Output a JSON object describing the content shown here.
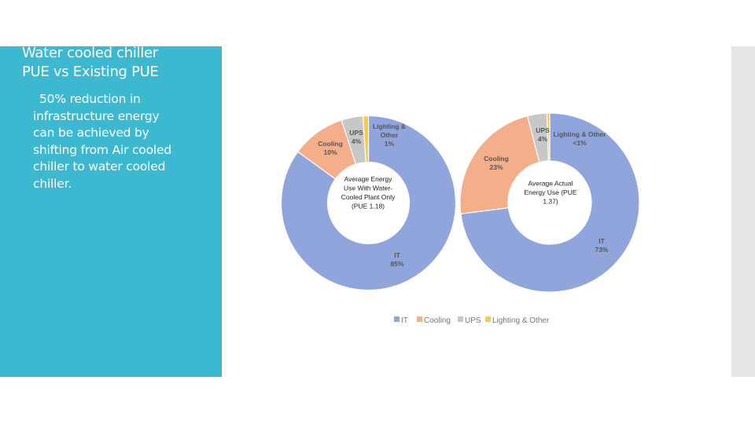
{
  "slide": {
    "title_lines": [
      "Water cooled chiller",
      "PUE vs  Existing PUE"
    ],
    "bullet_lines": [
      "50% reduction in",
      "infrastructure energy",
      "can be achieved by",
      "shifting from Air cooled",
      "chiller to water cooled",
      "chiller."
    ]
  },
  "chart_data": [
    {
      "type": "pie",
      "center_label_lines": [
        "Average Energy",
        "Use With Water-",
        "Cooled Plant Only",
        "(PUE 1.18)"
      ],
      "slices": [
        {
          "name": "IT",
          "value": 85,
          "label_lines": [
            "IT",
            "85%"
          ]
        },
        {
          "name": "Cooling",
          "value": 10,
          "label_lines": [
            "Cooling",
            "10%"
          ]
        },
        {
          "name": "UPS",
          "value": 4,
          "label_lines": [
            "UPS",
            "4%"
          ]
        },
        {
          "name": "Lighting & Other",
          "value": 1,
          "label_lines": [
            "Lighting &",
            "Other",
            "1%"
          ]
        }
      ],
      "colors": [
        "#8fa5dc",
        "#f4ae8a",
        "#c7c7c7",
        "#fcc943"
      ]
    },
    {
      "type": "pie",
      "center_label_lines": [
        "Average Actual",
        "Energy Use (PUE",
        "1.37)"
      ],
      "slices": [
        {
          "name": "IT",
          "value": 73,
          "label_lines": [
            "IT",
            "73%"
          ]
        },
        {
          "name": "Cooling",
          "value": 23,
          "label_lines": [
            "Cooling",
            "23%"
          ]
        },
        {
          "name": "UPS",
          "value": 3.5,
          "label_lines": [
            "UPS",
            "4%"
          ]
        },
        {
          "name": "Lighting & Other",
          "value": 0.5,
          "label_lines": [
            "Lighting & Other",
            "<1%"
          ]
        }
      ],
      "colors": [
        "#8fa5dc",
        "#f4ae8a",
        "#c7c7c7",
        "#fcc943"
      ]
    }
  ],
  "legend": [
    {
      "label": "IT",
      "color": "#8fa5dc"
    },
    {
      "label": "Cooling",
      "color": "#f4ae8a"
    },
    {
      "label": "UPS",
      "color": "#c7c7c7"
    },
    {
      "label": "Lighting & Other",
      "color": "#fcc943"
    }
  ]
}
